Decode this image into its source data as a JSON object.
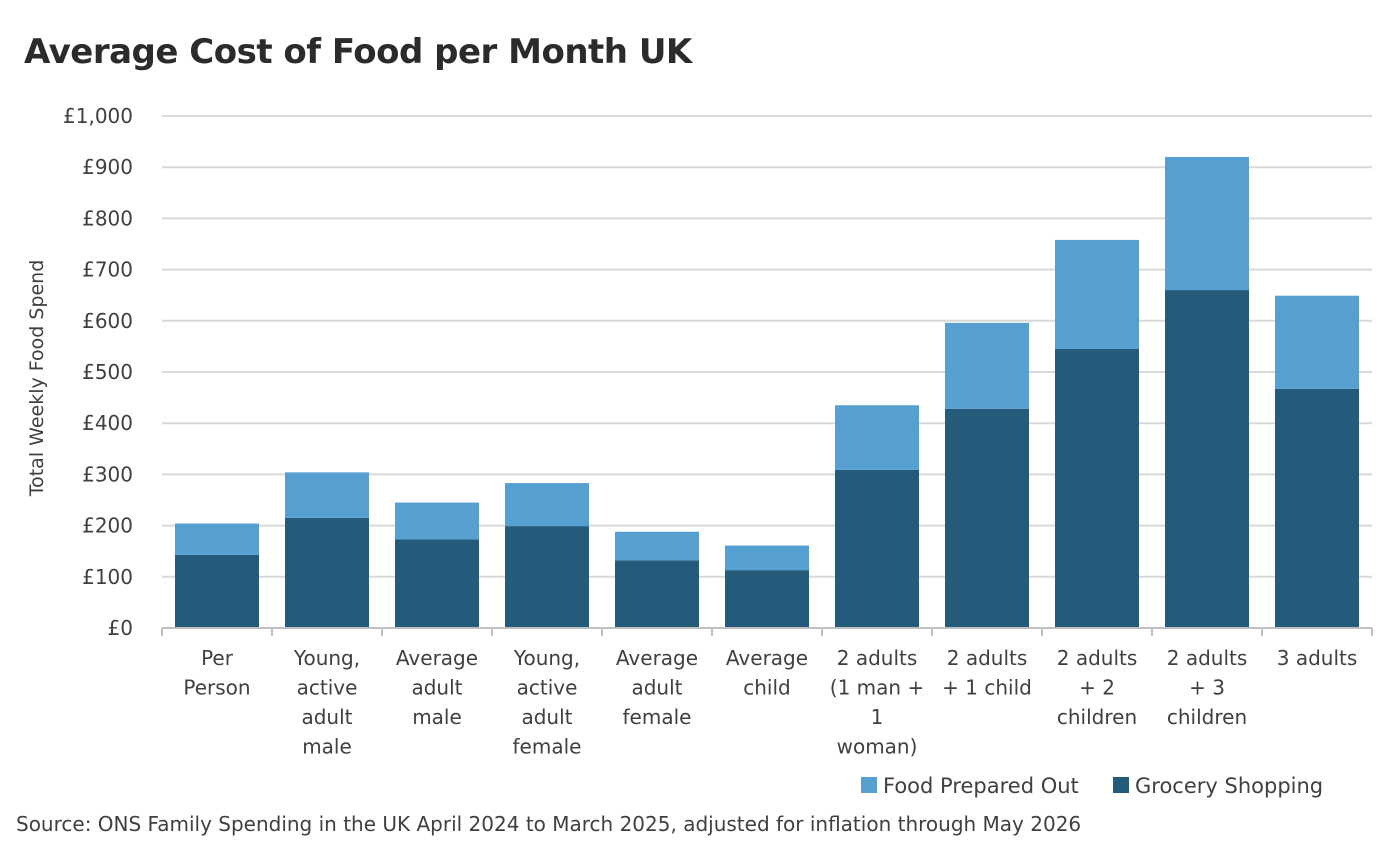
{
  "title": "Average Cost of Food per Month UK",
  "source": "Source: ONS Family Spending in the UK April 2024 to March 2025, adjusted for inflation through May 2026",
  "colors": {
    "food_prepared_out": "#55a0d0",
    "grocery_shopping": "#245a7a",
    "grid": "#d9d9d9",
    "axis": "#bfbfbf"
  },
  "chart_data": {
    "type": "bar",
    "stacked": true,
    "ylabel": "Total Weekly Food Spend",
    "xlabel": "",
    "ylim": [
      0,
      1000
    ],
    "yticks": [
      0,
      100,
      200,
      300,
      400,
      500,
      600,
      700,
      800,
      900,
      1000
    ],
    "ytick_labels": [
      "£0",
      "£100",
      "£200",
      "£300",
      "£400",
      "£500",
      "£600",
      "£700",
      "£800",
      "£900",
      "£1,000"
    ],
    "grid": true,
    "legend_position": "bottom-right",
    "categories": [
      [
        "Per",
        "Person"
      ],
      [
        "Young,",
        "active",
        "adult",
        "male"
      ],
      [
        "Average",
        "adult",
        "male"
      ],
      [
        "Young,",
        "active",
        "adult",
        "female"
      ],
      [
        "Average",
        "adult",
        "female"
      ],
      [
        "Average",
        "child"
      ],
      [
        "2 adults",
        "(1 man +",
        "1",
        "woman)"
      ],
      [
        "2 adults",
        "+ 1 child"
      ],
      [
        "2 adults",
        "+ 2",
        "children"
      ],
      [
        "2 adults",
        "+ 3",
        "children"
      ],
      [
        "3 adults"
      ]
    ],
    "series": [
      {
        "name": "Grocery Shopping",
        "values": [
          143,
          215,
          173,
          199,
          132,
          113,
          309,
          428,
          545,
          660,
          467
        ]
      },
      {
        "name": "Food Prepared Out",
        "values": [
          61,
          89,
          72,
          84,
          56,
          48,
          126,
          168,
          213,
          260,
          182
        ]
      }
    ],
    "legend": [
      "Food Prepared Out",
      "Grocery Shopping"
    ]
  }
}
